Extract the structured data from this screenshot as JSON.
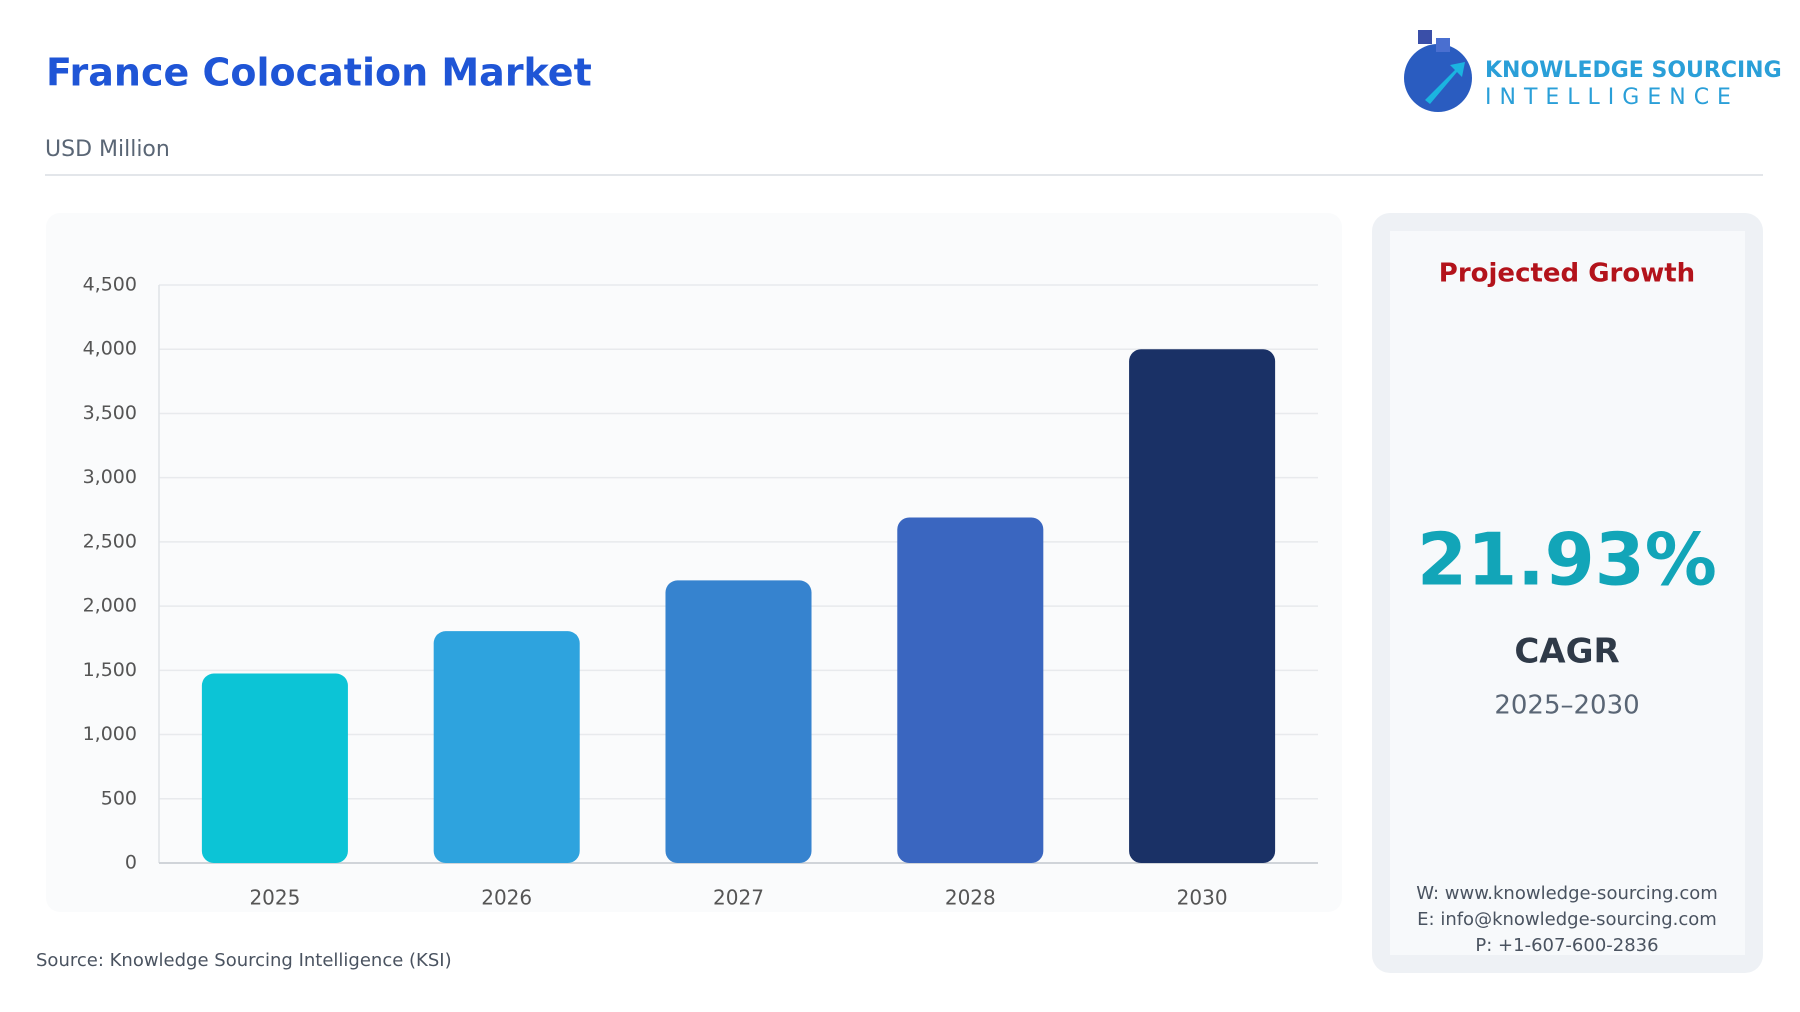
{
  "chart_data": {
    "type": "bar",
    "title": "France Colocation Market",
    "subtitle": "USD Million",
    "categories": [
      "2025",
      "2026",
      "2027",
      "2028",
      "2030"
    ],
    "values": [
      1475,
      1805,
      2200,
      2690,
      4000
    ],
    "colors": [
      "#0cc4d6",
      "#2ea3de",
      "#3683cf",
      "#3a66c0",
      "#1a3166"
    ],
    "ylim": [
      0,
      4500
    ],
    "yticks": [
      0,
      500,
      {
        "value": 1000,
        "label": "1,000"
      },
      {
        "value": 1500,
        "label": "1,500"
      },
      {
        "value": 2000,
        "label": "2,000"
      },
      {
        "value": 2500,
        "label": "2,500"
      },
      {
        "value": 3000,
        "label": "3,000"
      },
      {
        "value": 3500,
        "label": "3,500"
      },
      {
        "value": 4000,
        "label": "4,000"
      },
      {
        "value": 4500,
        "label": "4,500"
      }
    ],
    "grid": true
  },
  "source": "Source: Knowledge Sourcing Intelligence (KSI)",
  "logo": {
    "line1": "KNOWLEDGE SOURCING",
    "line2": "INTELLIGENCE"
  },
  "growth_panel": {
    "heading": "Projected Growth",
    "value": "21.93%",
    "label": "CAGR",
    "period": "2025–2030",
    "contacts": [
      "W: www.knowledge-sourcing.com",
      "E: info@knowledge-sourcing.com",
      "P: +1-607-600-2836"
    ]
  }
}
